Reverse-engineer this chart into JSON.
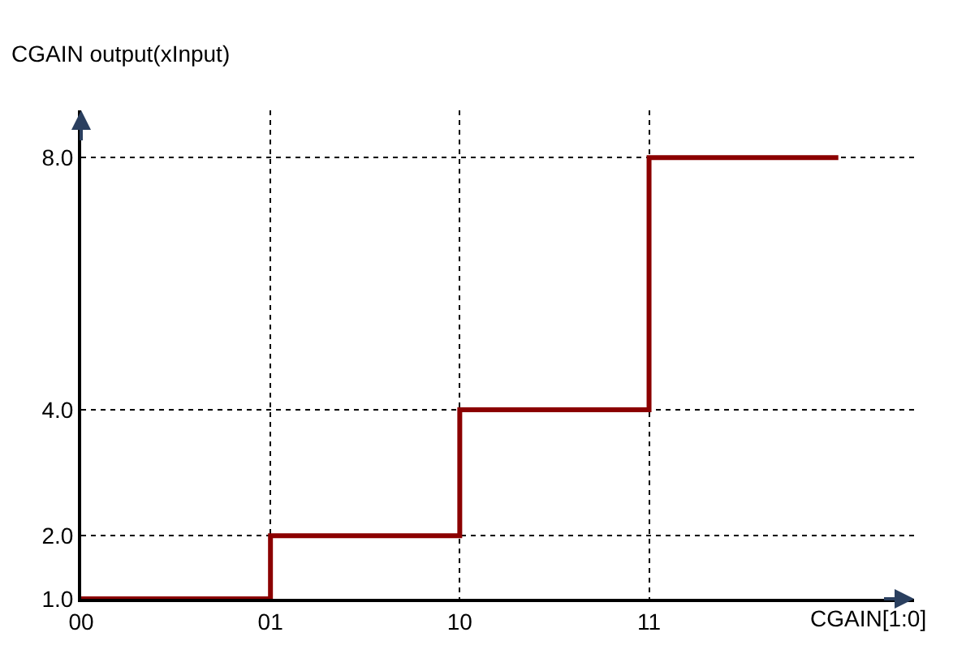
{
  "chart_data": {
    "type": "step",
    "xlabel": "CGAIN[1:0]",
    "ylabel": "CGAIN output(xInput)",
    "categories": [
      "00",
      "01",
      "10",
      "11",
      null
    ],
    "series": [
      {
        "color": "#8b0000",
        "values": [
          1,
          2,
          4,
          8,
          8
        ]
      }
    ],
    "ylim": [
      1,
      8.75
    ],
    "yticks": [
      {
        "value": 1,
        "label": "1.0"
      },
      {
        "value": 2,
        "label": "2.0"
      },
      {
        "value": 4,
        "label": "4.0"
      },
      {
        "value": 8,
        "label": "8.0"
      }
    ],
    "grid": true,
    "line_style": "solid",
    "marker": "none"
  }
}
